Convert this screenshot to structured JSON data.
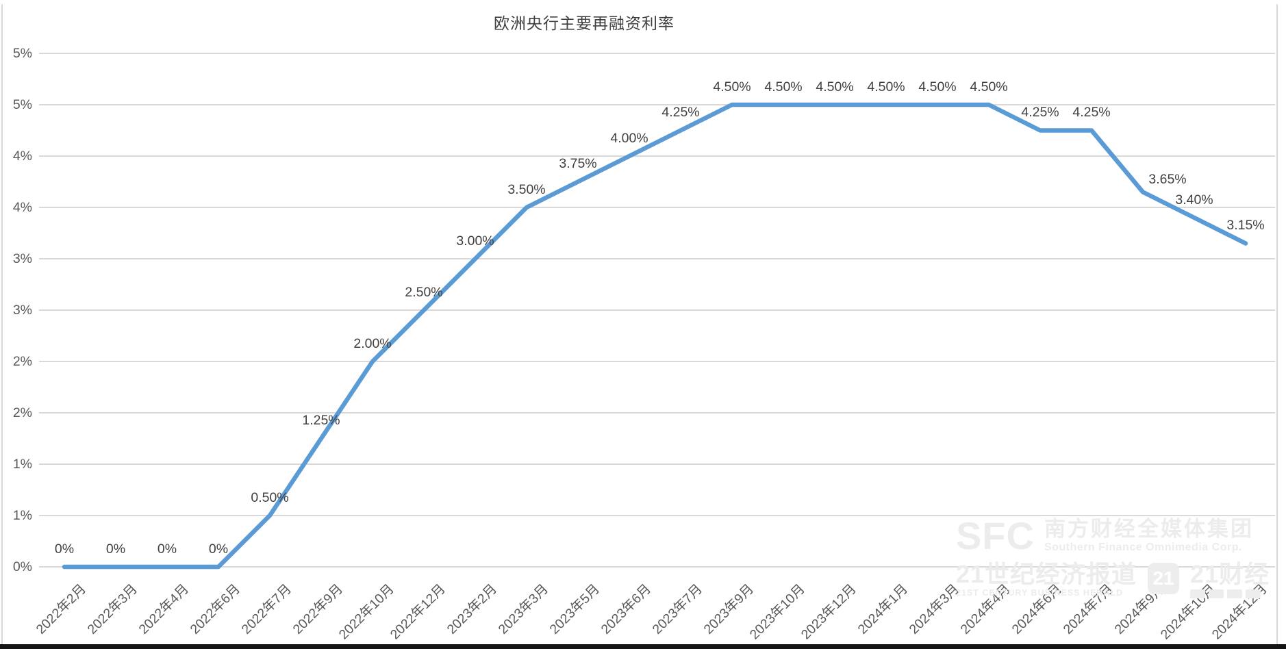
{
  "title": "欧洲央行主要再融资利率",
  "chart_data": {
    "type": "line",
    "title": "欧洲央行主要再融资利率",
    "categories": [
      "2022年2月",
      "2022年3月",
      "2022年4月",
      "2022年6月",
      "2022年7月",
      "2022年9月",
      "2022年10月",
      "2022年12月",
      "2023年2月",
      "2023年3月",
      "2023年5月",
      "2023年6月",
      "2023年7月",
      "2023年9月",
      "2023年10月",
      "2023年12月",
      "2024年1月",
      "2024年3月",
      "2024年4月",
      "2024年6月",
      "2024年7月",
      "2024年9月",
      "2024年10月",
      "2024年12月"
    ],
    "values": [
      0,
      0,
      0,
      0,
      0.5,
      1.25,
      2.0,
      2.5,
      3.0,
      3.5,
      3.75,
      4.0,
      4.25,
      4.5,
      4.5,
      4.5,
      4.5,
      4.5,
      4.5,
      4.25,
      4.25,
      3.65,
      3.4,
      3.15
    ],
    "data_labels": [
      "0%",
      "0%",
      "0%",
      "0%",
      "0.50%",
      "1.25%",
      "2.00%",
      "2.50%",
      "3.00%",
      "3.50%",
      "3.75%",
      "4.00%",
      "4.25%",
      "4.50%",
      "4.50%",
      "4.50%",
      "4.50%",
      "4.50%",
      "4.50%",
      "4.25%",
      "4.25%",
      "3.65%",
      "3.40%",
      "3.15%"
    ],
    "y_ticks_top_to_bottom": [
      "5%",
      "5%",
      "4%",
      "4%",
      "3%",
      "3%",
      "2%",
      "2%",
      "1%",
      "1%",
      "0%"
    ],
    "y_min": 0,
    "y_max": 5,
    "y_step": 0.5,
    "xlabel": "",
    "ylabel": "",
    "grid": true,
    "legend_position": "none",
    "line_color": "#5B9BD5",
    "gridline_color": "#d9d9d9",
    "axis_text_color": "#595959",
    "data_label_color": "#404040"
  },
  "watermark": {
    "sfc": "SFC",
    "sfc_cn": "南方财经全媒体集团",
    "sfc_en": "Southern Finance Omnimedia Corp.",
    "herald_cn": "21世纪经济报道",
    "herald_en": "21ST CENTURY BUSINESS HERALD",
    "badge": "21",
    "jingji_cn": "21财经"
  }
}
